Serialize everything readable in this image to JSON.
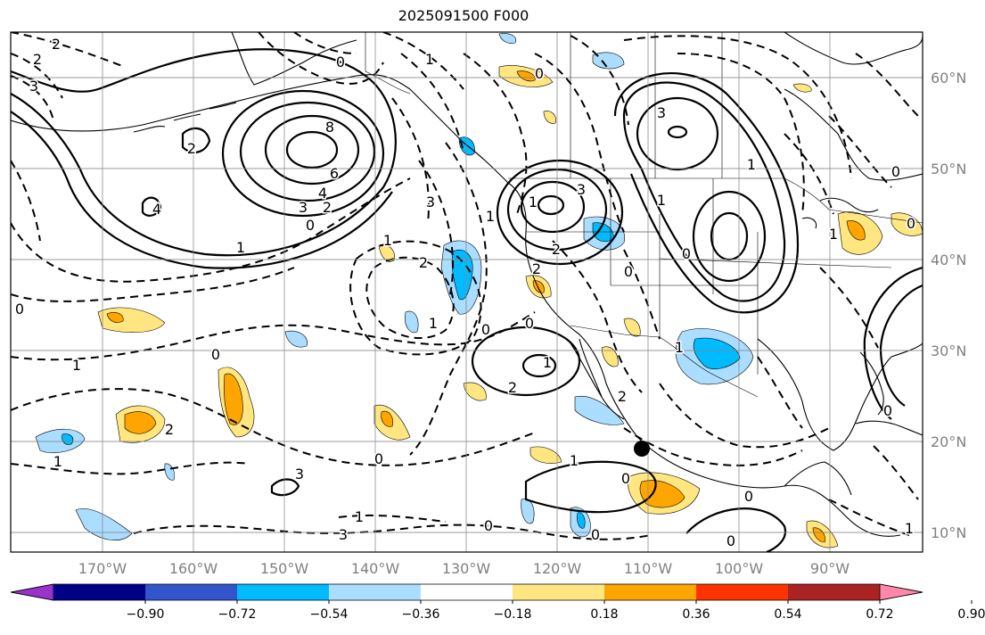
{
  "title": "2025091500 F000",
  "lon_ticks": [
    "170°W",
    "160°W",
    "150°W",
    "140°W",
    "130°W",
    "120°W",
    "110°W",
    "100°W",
    "90°W"
  ],
  "lat_ticks": [
    "60°N",
    "50°N",
    "40°N",
    "30°N",
    "20°N",
    "10°N"
  ],
  "colorbar": {
    "colors": [
      "#9933cc",
      "#000088",
      "#3355cc",
      "#00bbff",
      "#aaddff",
      "#ffffff",
      "#ffe680",
      "#ffa500",
      "#ff3300",
      "#aa2222",
      "#ff88aa"
    ],
    "labels": [
      "−0.90",
      "−0.72",
      "−0.54",
      "−0.36",
      "−0.18",
      "0.18",
      "0.36",
      "0.54",
      "0.72",
      "0.90"
    ]
  },
  "contour_labels": [
    "2",
    "3",
    "2",
    "0",
    "1",
    "0",
    "3",
    "1",
    "3",
    "2",
    "8",
    "6",
    "4",
    "3",
    "2",
    "0",
    "4",
    "1",
    "2",
    "3",
    "1",
    "2",
    "2",
    "0",
    "1",
    "2",
    "0",
    "1",
    "1",
    "0",
    "2",
    "1",
    "0",
    "3",
    "1",
    "0",
    "2",
    "1",
    "0",
    "1",
    "3",
    "0",
    "0",
    "0",
    "1",
    "0",
    "1",
    "0",
    "0",
    "1",
    "0",
    "1",
    "0",
    "1",
    "0"
  ],
  "marker": "current position dot"
}
